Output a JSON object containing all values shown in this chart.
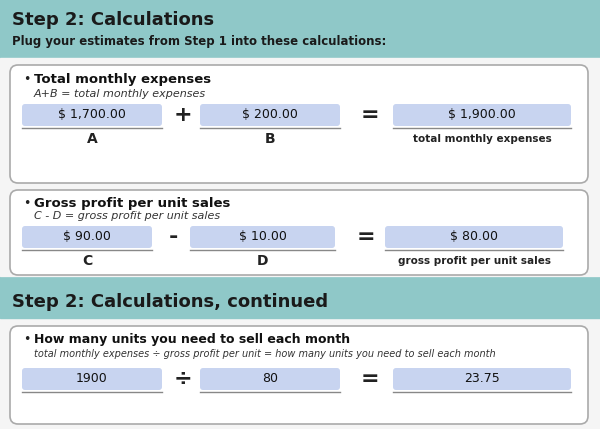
{
  "bg_color": "#8fc8c8",
  "white_bg": "#f5f5f5",
  "input_fill": "#c8d4f0",
  "title1": "Step 2: Calculations",
  "subtitle1": "Plug your estimates from Step 1 into these calculations:",
  "title2": "Step 2: Calculations, continued",
  "section1_bullet": "Total monthly expenses",
  "section1_formula": "A+B = total monthly expenses",
  "section1_val_a": "$ 1,700.00",
  "section1_val_b": "$ 200.00",
  "section1_val_result": "$ 1,900.00",
  "section1_label_a": "A",
  "section1_label_b": "B",
  "section1_label_result": "total monthly expenses",
  "section1_op1": "+",
  "section1_op2": "=",
  "section2_bullet": "Gross profit per unit sales",
  "section2_formula": "C - D = gross profit per unit sales",
  "section2_val_c": "$ 90.00",
  "section2_val_d": "$ 10.00",
  "section2_val_result": "$ 80.00",
  "section2_label_c": "C",
  "section2_label_d": "D",
  "section2_label_result": "gross profit per unit sales",
  "section2_op1": "-",
  "section2_op2": "=",
  "section3_bullet": "How many units you need to sell each month",
  "section3_formula": "total monthly expenses ÷ gross profit per unit = how many units you need to sell each month",
  "section3_val_e": "1900",
  "section3_val_f": "80",
  "section3_val_result": "23.75",
  "section3_op1": "÷",
  "section3_op2": "="
}
